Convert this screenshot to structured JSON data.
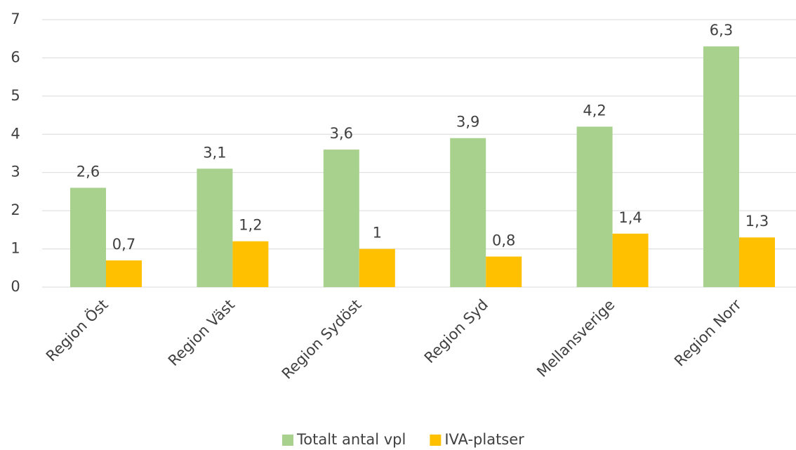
{
  "chart_data": {
    "type": "bar",
    "categories": [
      "Region Öst",
      "Region Väst",
      "Region Sydöst",
      "Region Syd",
      "Mellansverige",
      "Region Norr"
    ],
    "series": [
      {
        "name": "Totalt antal vpl",
        "color": "#a9d18e",
        "values": [
          2.6,
          3.1,
          3.6,
          3.9,
          4.2,
          6.3
        ],
        "value_labels": [
          "2,6",
          "3,1",
          "3,6",
          "3,9",
          "4,2",
          "6,3"
        ]
      },
      {
        "name": "IVA-platser",
        "color": "#ffc000",
        "values": [
          0.7,
          1.2,
          1,
          0.8,
          1.4,
          1.3
        ],
        "value_labels": [
          "0,7",
          "1,2",
          "1",
          "0,8",
          "1,4",
          "1,3"
        ]
      }
    ],
    "ylim": [
      0,
      7
    ],
    "yticks": [
      0,
      1,
      2,
      3,
      4,
      5,
      6,
      7
    ],
    "grid": true,
    "legend": "bottom"
  }
}
